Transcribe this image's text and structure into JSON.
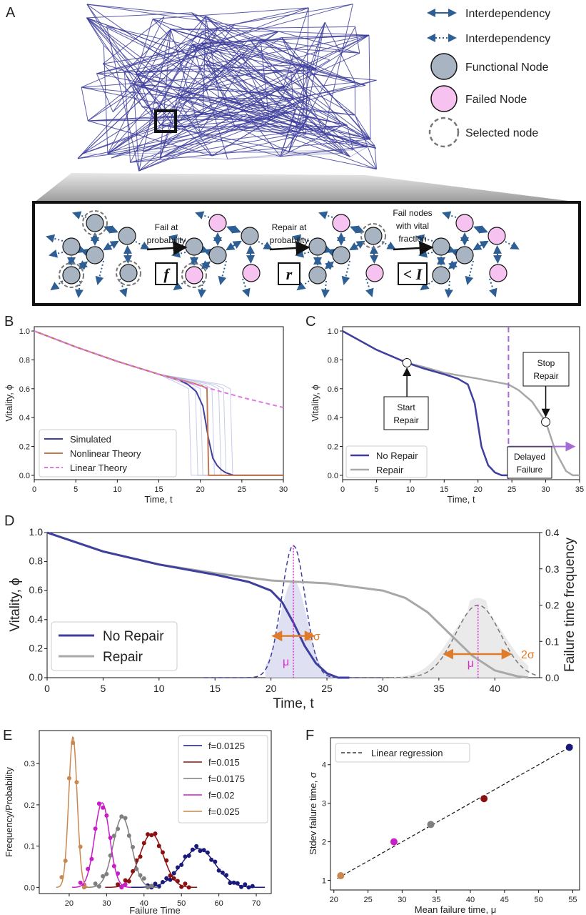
{
  "panel_labels": {
    "a": "A",
    "b": "B",
    "c": "C",
    "d": "D",
    "e": "E",
    "f": "F"
  },
  "colors": {
    "network": "#3f3f9e",
    "functional": "#a9b4c2",
    "failed": "#f6c3f0",
    "arrow": "#2e5f94",
    "no_repair": "#3f3f9e",
    "repair": "#a8a8a8",
    "nonlinear": "#c07850",
    "linear": "#e07ae0",
    "orange": "#e07b2a",
    "magenta": "#d82ad0",
    "purple_line": "#a76bd8"
  },
  "legend_a": [
    {
      "icon": "solid-arrow",
      "label": "Interdependency"
    },
    {
      "icon": "dotted-arrow",
      "label": "Interdependency"
    },
    {
      "icon": "gray-circle",
      "label": "Functional Node"
    },
    {
      "icon": "pink-circle",
      "label": "Failed Node"
    },
    {
      "icon": "dashed-circle",
      "label": "Selected node"
    }
  ],
  "steps": [
    {
      "top": "Fail at",
      "bottom": "probability",
      "op": "f"
    },
    {
      "top": "Repair at",
      "bottom": "probability",
      "op": "r"
    },
    {
      "top": "Fail nodes",
      "mid": "with vital",
      "bottom": "fraction",
      "op": "< I"
    }
  ],
  "chart_data": [
    {
      "id": "B",
      "type": "line",
      "xlabel": "Time, t",
      "ylabel": "Vitality, ϕ",
      "xlim": [
        0,
        30
      ],
      "ylim": [
        0,
        1.0
      ],
      "xticks": [
        0,
        5,
        10,
        15,
        20,
        25,
        30
      ],
      "yticks": [
        0.0,
        0.2,
        0.4,
        0.6,
        0.8,
        1.0
      ],
      "legend_position": "bottom-left",
      "series": [
        {
          "name": "Simulated",
          "x": [
            0,
            5,
            10,
            15,
            17.5,
            18.5,
            19.5,
            20.3,
            21,
            21.5,
            22,
            22.5,
            23,
            23.5,
            24,
            30
          ],
          "y": [
            1.0,
            0.89,
            0.79,
            0.7,
            0.66,
            0.63,
            0.58,
            0.48,
            0.25,
            0.12,
            0.07,
            0.04,
            0.02,
            0.01,
            0.0,
            0.0
          ]
        },
        {
          "name": "Nonlinear Theory",
          "x": [
            0,
            5,
            10,
            15,
            19,
            20.2,
            20.8,
            21.0,
            30
          ],
          "y": [
            1.0,
            0.89,
            0.79,
            0.7,
            0.64,
            0.62,
            0.6,
            0.0,
            0.0
          ]
        },
        {
          "name": "Linear Theory",
          "x": [
            0,
            5,
            10,
            15,
            20,
            25,
            30
          ],
          "y": [
            1.0,
            0.89,
            0.79,
            0.7,
            0.62,
            0.54,
            0.47
          ]
        }
      ]
    },
    {
      "id": "C",
      "type": "line",
      "xlabel": "Time, t",
      "ylabel": "Vitality, ϕ",
      "xlim": [
        0,
        35
      ],
      "ylim": [
        0,
        1.0
      ],
      "xticks": [
        0,
        5,
        10,
        15,
        20,
        25,
        30,
        35
      ],
      "yticks": [
        0.0,
        0.2,
        0.4,
        0.6,
        0.8,
        1.0
      ],
      "legend_position": "bottom-left",
      "series": [
        {
          "name": "No Repair",
          "x": [
            0,
            5,
            9.5,
            12,
            15,
            17,
            18.5,
            19.5,
            20.5,
            21.5,
            22.5,
            23.5,
            24.5
          ],
          "y": [
            1.0,
            0.87,
            0.78,
            0.74,
            0.7,
            0.67,
            0.63,
            0.5,
            0.2,
            0.07,
            0.02,
            0.0,
            0.0
          ]
        },
        {
          "name": "Repair",
          "x": [
            0,
            5,
            9.5,
            12,
            15,
            20,
            24.5,
            26,
            28,
            30,
            31.5,
            33,
            34,
            35
          ],
          "y": [
            1.0,
            0.87,
            0.78,
            0.75,
            0.71,
            0.67,
            0.63,
            0.59,
            0.51,
            0.37,
            0.16,
            0.03,
            0.0,
            0.0
          ]
        }
      ],
      "annotations": [
        {
          "text": "Start Repair",
          "x": 9.5,
          "y": 0.78
        },
        {
          "text": "Stop Repair",
          "x": 30,
          "y": 0.37
        },
        {
          "text": "Delayed Failure",
          "x_from": 24.5,
          "x_to": 34
        }
      ]
    },
    {
      "id": "D",
      "type": "line",
      "xlabel": "Time, t",
      "ylabel": "Vitality, ϕ",
      "y2label": "Failure time frequency",
      "xlim": [
        0,
        44
      ],
      "ylim": [
        0,
        1.0
      ],
      "y2lim": [
        0,
        0.4
      ],
      "xticks": [
        0,
        5,
        10,
        15,
        20,
        25,
        30,
        35,
        40
      ],
      "yticks": [
        0.0,
        0.2,
        0.4,
        0.6,
        0.8,
        1.0
      ],
      "y2ticks": [
        0.0,
        0.1,
        0.2,
        0.3,
        0.4
      ],
      "legend_position": "bottom-left",
      "series": [
        {
          "name": "No Repair",
          "x": [
            0,
            5,
            10,
            15,
            18,
            20,
            21,
            22,
            23,
            24,
            25,
            26,
            27
          ],
          "y": [
            1.0,
            0.87,
            0.78,
            0.71,
            0.66,
            0.6,
            0.52,
            0.38,
            0.22,
            0.1,
            0.03,
            0.0,
            0.0
          ]
        },
        {
          "name": "Repair",
          "x": [
            0,
            5,
            10,
            15,
            20,
            25,
            30,
            32,
            34,
            36,
            38,
            40,
            42,
            43
          ],
          "y": [
            1.0,
            0.87,
            0.78,
            0.72,
            0.67,
            0.65,
            0.6,
            0.55,
            0.45,
            0.3,
            0.15,
            0.05,
            0.01,
            0.0
          ]
        }
      ],
      "distributions": [
        {
          "mu": 22,
          "sigma": 1.05,
          "peak": 0.365,
          "label_mu": "μ",
          "label_sigma": "2σ"
        },
        {
          "mu": 38.5,
          "sigma": 2.0,
          "peak": 0.2,
          "label_mu": "μ",
          "label_sigma": "2σ"
        }
      ]
    },
    {
      "id": "E",
      "type": "scatter",
      "xlabel": "Failure Time",
      "ylabel": "Frequency/Probability",
      "xlim": [
        12,
        74
      ],
      "ylim": [
        -0.015,
        0.38
      ],
      "xticks": [
        20,
        30,
        40,
        50,
        60,
        70
      ],
      "yticks": [
        0.0,
        0.1,
        0.2,
        0.3
      ],
      "legend_position": "top-right",
      "series": [
        {
          "name": "f=0.0125",
          "mu": 54.5,
          "sigma": 4.5,
          "peak": 0.094
        },
        {
          "name": "f=0.015",
          "mu": 42,
          "sigma": 3.1,
          "peak": 0.13
        },
        {
          "name": "f=0.0175",
          "mu": 34.2,
          "sigma": 2.45,
          "peak": 0.17
        },
        {
          "name": "f=0.02",
          "mu": 28.8,
          "sigma": 2.0,
          "peak": 0.205
        },
        {
          "name": "f=0.025",
          "mu": 21,
          "sigma": 1.12,
          "peak": 0.365
        }
      ]
    },
    {
      "id": "F",
      "type": "scatter",
      "xlabel": "Mean failure time, μ",
      "ylabel": "Stdev failure time, σ",
      "xlim": [
        19.5,
        56
      ],
      "ylim": [
        0.75,
        4.7
      ],
      "xticks": [
        20,
        25,
        30,
        35,
        40,
        45,
        50,
        55
      ],
      "yticks": [
        1,
        2,
        3,
        4
      ],
      "legend_position": "top-left",
      "x": [
        21,
        28.8,
        34.2,
        42,
        54.5
      ],
      "y": [
        1.12,
        2.0,
        2.45,
        3.12,
        4.45
      ],
      "fit": {
        "name": "Linear regression",
        "x": [
          20.5,
          55
        ],
        "y": [
          1.05,
          4.5
        ]
      }
    }
  ]
}
